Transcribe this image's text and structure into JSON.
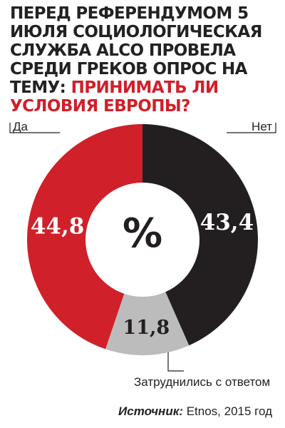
{
  "title": {
    "part1": "Перед референдумом 5 июля социологическая служба ALCO провела среди греков опрос на тему: ",
    "part2": "принимать ли условия Европы?"
  },
  "chart_data": {
    "type": "pie",
    "center_label": "%",
    "slices": [
      {
        "label": "Нет",
        "value": 43.4,
        "value_label": "43,4",
        "color": "#231f20"
      },
      {
        "label": "Затруднились с ответом",
        "value": 11.8,
        "value_label": "11,8",
        "color": "#bcbcbc"
      },
      {
        "label": "Да",
        "value": 44.8,
        "value_label": "44,8",
        "color": "#d0202a"
      }
    ]
  },
  "source": {
    "label": "Источник:",
    "text": " Etnos, 2015 год"
  }
}
